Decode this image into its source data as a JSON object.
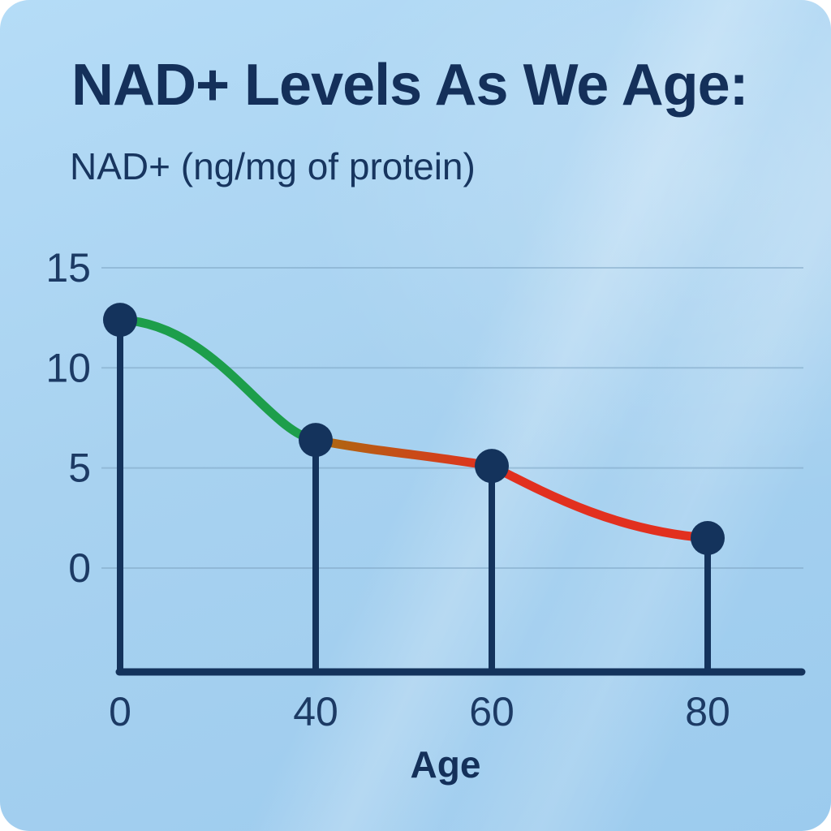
{
  "card": {
    "title": "NAD+ Levels As We Age:",
    "subtitle": "NAD+ (ng/mg of protein)"
  },
  "chart_data": {
    "type": "line",
    "title": "NAD+ Levels As We Age:",
    "xlabel": "Age",
    "ylabel": "NAD+ (ng/mg of protein)",
    "x": [
      0,
      40,
      60,
      80
    ],
    "values": [
      12.4,
      6.4,
      5.1,
      1.5
    ],
    "yticks": [
      15,
      10,
      5,
      0
    ],
    "ylim": [
      0,
      15
    ],
    "grid": "horizontal-only",
    "legend": "none",
    "style": "lollipop markers with vertical stems dropping to the x-axis; curve color-coded by age segment",
    "segment_colors": [
      "#1d9e4b",
      "#ab6a10",
      "#e2301f"
    ],
    "marker_color": "#14335c",
    "axis_color": "#14335c"
  },
  "colors": {
    "card_background": "#a8d2f0",
    "text_navy": "#14305a",
    "gridline": "#7fa6c4"
  }
}
